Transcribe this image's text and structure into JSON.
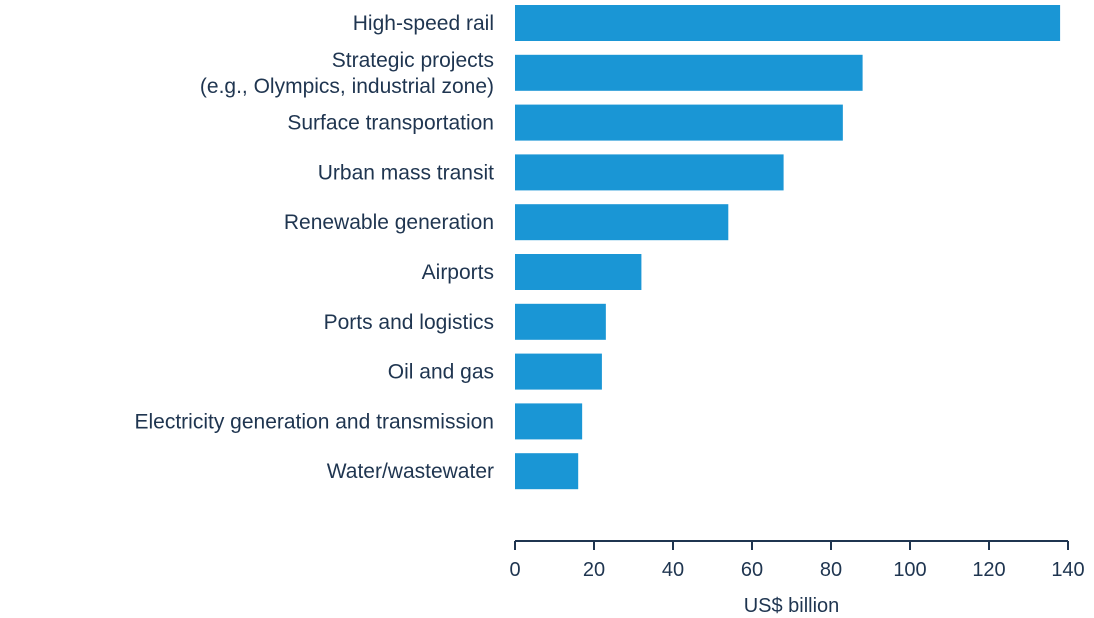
{
  "chart_data": {
    "type": "bar",
    "orientation": "horizontal",
    "categories": [
      "High-speed rail",
      "Strategic projects\n(e.g., Olympics, industrial zone)",
      "Surface transportation",
      "Urban mass transit",
      "Renewable generation",
      "Airports",
      "Ports and logistics",
      "Oil and gas",
      "Electricity generation and transmission",
      "Water/wastewater"
    ],
    "values": [
      138,
      88,
      83,
      68,
      54,
      32,
      23,
      22,
      17,
      16
    ],
    "title": "",
    "xlabel": "US$ billion",
    "ylabel": "",
    "xlim": [
      0,
      140
    ],
    "xticks": [
      0,
      20,
      40,
      60,
      80,
      100,
      120,
      140
    ],
    "grid": false,
    "legend": "none",
    "bar_color": "#1a96d5",
    "axis_color": "#1f3550",
    "text_color": "#1f3550"
  }
}
